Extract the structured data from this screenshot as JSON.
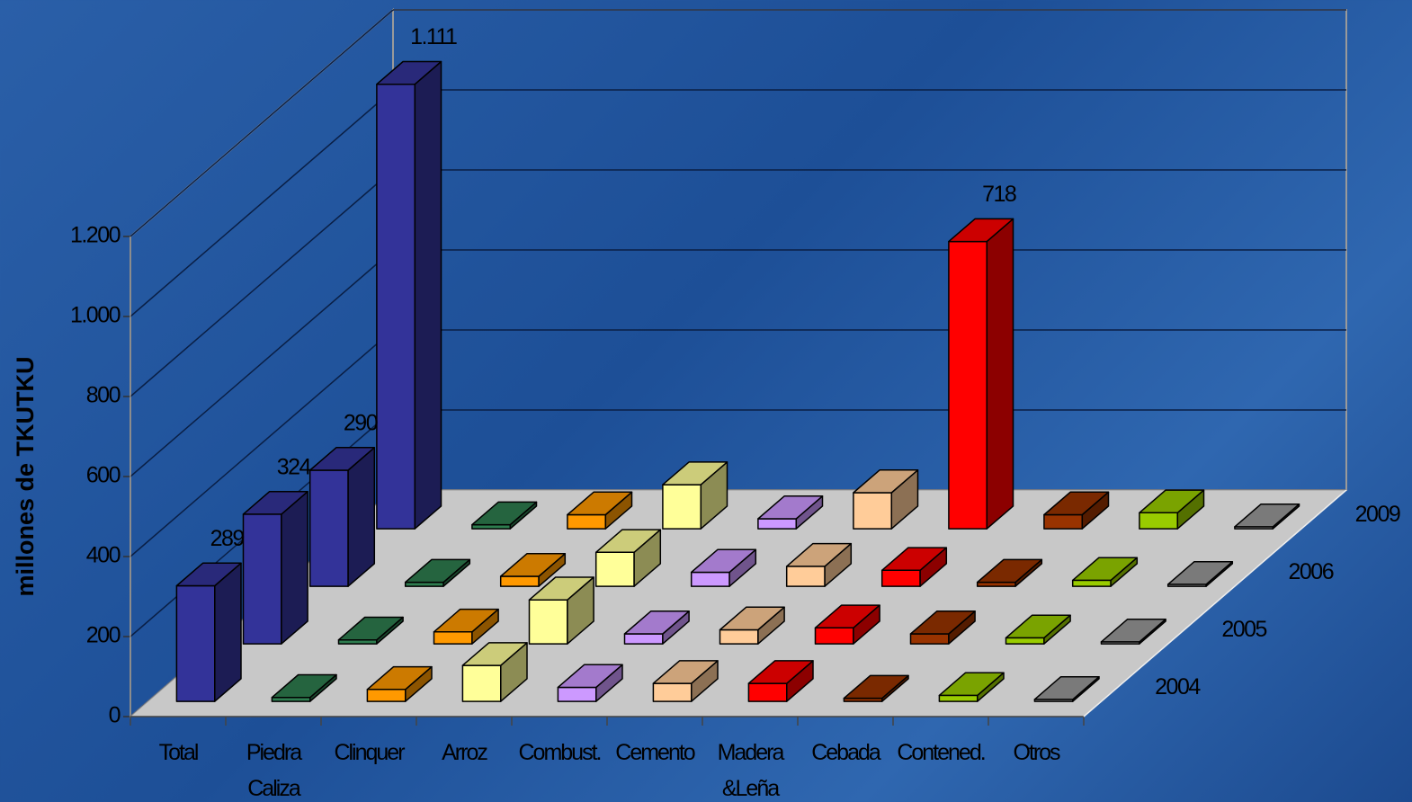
{
  "chart_data": {
    "type": "bar3d",
    "y_label": "millones de TKUTKU",
    "categories": [
      "Total",
      "Piedra Caliza",
      "Clinquer",
      "Arroz",
      "Combust.",
      "Cemento",
      "Madera &Leña",
      "Cebada",
      "Contened.",
      "Otros"
    ],
    "colors": [
      "#333399",
      "#2e7d4f",
      "#ff9900",
      "#ffff99",
      "#cc99ff",
      "#ffcc99",
      "#ff0000",
      "#993300",
      "#99cc00",
      "#999999"
    ],
    "series": [
      {
        "name": "2004",
        "values": [
          289,
          10,
          30,
          90,
          35,
          45,
          45,
          8,
          15,
          5
        ],
        "value_labels": [
          "289",
          null,
          null,
          null,
          null,
          null,
          null,
          null,
          null,
          null
        ]
      },
      {
        "name": "2005",
        "values": [
          324,
          10,
          30,
          110,
          25,
          35,
          40,
          25,
          15,
          5
        ],
        "value_labels": [
          "324",
          null,
          null,
          null,
          null,
          null,
          null,
          null,
          null,
          null
        ]
      },
      {
        "name": "2006",
        "values": [
          290,
          10,
          25,
          85,
          35,
          50,
          40,
          10,
          15,
          5
        ],
        "value_labels": [
          "290",
          null,
          null,
          null,
          null,
          null,
          null,
          null,
          null,
          null
        ]
      },
      {
        "name": "2009",
        "values": [
          1111,
          10,
          35,
          110,
          25,
          90,
          718,
          35,
          40,
          5
        ],
        "value_labels": [
          "1.111",
          null,
          null,
          null,
          null,
          null,
          "718",
          null,
          null,
          null
        ]
      }
    ],
    "ylim": [
      0,
      1200
    ],
    "yticks": [
      0,
      200,
      400,
      600,
      800,
      {
        "value": 1000,
        "label": "1.000"
      },
      {
        "value": 1200,
        "label": "1.200"
      }
    ],
    "grid": true
  }
}
